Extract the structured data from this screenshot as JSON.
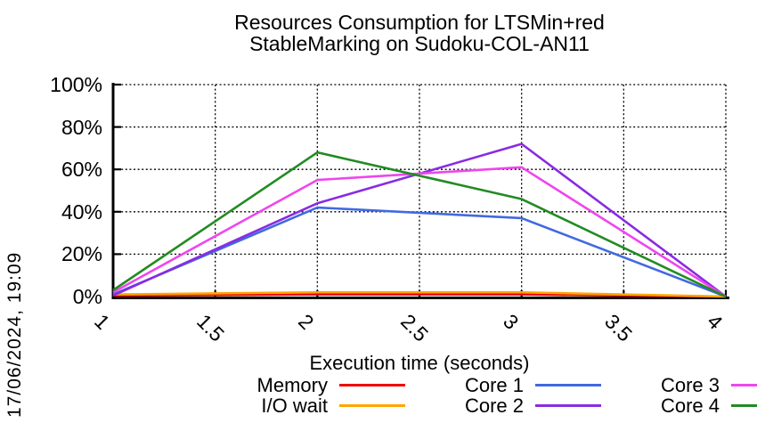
{
  "timestamp_label": "17/06/2024, 19:09",
  "chart_data": {
    "type": "line",
    "title": "Resources Consumption for LTSMin+red StableMarking on Sudoku-COL-AN11",
    "title_lines": [
      "Resources Consumption for LTSMin+red",
      "StableMarking on Sudoku-COL-AN11"
    ],
    "xlabel": "Execution time (seconds)",
    "ylabel": "",
    "xlim": [
      1,
      4
    ],
    "ylim": [
      0,
      100
    ],
    "x_ticks": [
      1,
      1.5,
      2,
      2.5,
      3,
      3.5,
      4
    ],
    "x_tick_labels": [
      "1",
      "1.5",
      "2",
      "2.5",
      "3",
      "3.5",
      "4"
    ],
    "y_ticks": [
      0,
      20,
      40,
      60,
      80,
      100
    ],
    "y_tick_labels": [
      "0%",
      "20%",
      "40%",
      "60%",
      "80%",
      "100%"
    ],
    "grid": true,
    "grid_style": "dotted-black",
    "legend_position": "bottom",
    "x": [
      1,
      2,
      3,
      4
    ],
    "series": [
      {
        "name": "Memory",
        "color": "#ee0000",
        "values": [
          0.5,
          1,
          1,
          0
        ]
      },
      {
        "name": "I/O wait",
        "color": "#ffa500",
        "values": [
          1,
          2,
          2,
          0
        ]
      },
      {
        "name": "Core 1",
        "color": "#4169e1",
        "values": [
          1,
          42,
          37,
          0
        ]
      },
      {
        "name": "Core 2",
        "color": "#8a2be2",
        "values": [
          0.5,
          44,
          72,
          0
        ]
      },
      {
        "name": "Core 3",
        "color": "#ee46ee",
        "values": [
          2,
          55,
          61,
          0
        ]
      },
      {
        "name": "Core 4",
        "color": "#228b22",
        "values": [
          3,
          68,
          46,
          0
        ]
      }
    ]
  }
}
